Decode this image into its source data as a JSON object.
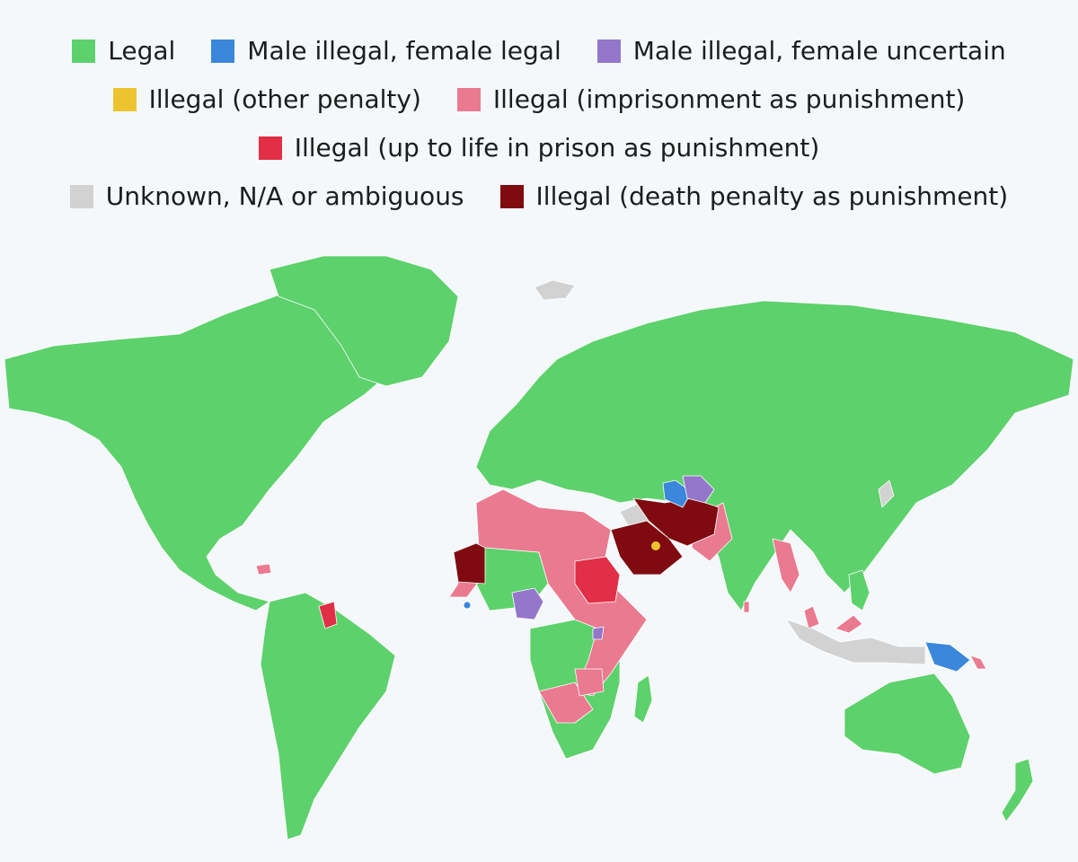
{
  "legend": {
    "items": [
      {
        "label": "Legal",
        "color": "#5dd16c"
      },
      {
        "label": "Male illegal, female legal",
        "color": "#3a87db"
      },
      {
        "label": "Male illegal, female uncertain",
        "color": "#9477cb"
      },
      {
        "label": "Illegal (other penalty)",
        "color": "#ecc430"
      },
      {
        "label": "Illegal (imprisonment as punishment)",
        "color": "#ea7a90"
      },
      {
        "label": "Illegal (up to life in prison as punishment)",
        "color": "#e02f46"
      },
      {
        "label": "Unknown, N/A or ambiguous",
        "color": "#d2d2d2"
      },
      {
        "label": "Illegal (death penalty as punishment)",
        "color": "#7f0b10"
      }
    ]
  },
  "map": {
    "background": "#f4f8fb",
    "border_color": "#ffffff"
  }
}
